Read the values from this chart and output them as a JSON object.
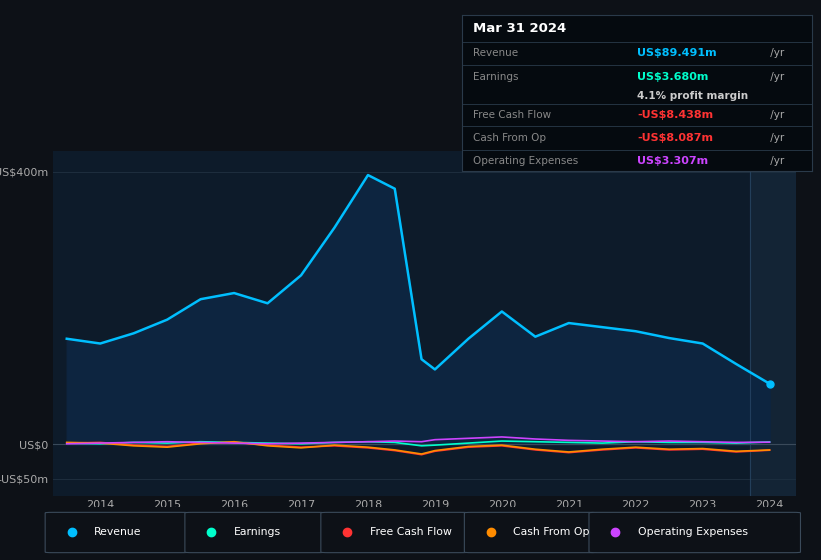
{
  "background_color": "#0d1117",
  "plot_bg_color": "#0d1b2a",
  "years": [
    2013.5,
    2014.0,
    2014.5,
    2015.0,
    2015.5,
    2016.0,
    2016.5,
    2017.0,
    2017.5,
    2018.0,
    2018.4,
    2018.8,
    2019.0,
    2019.5,
    2020.0,
    2020.5,
    2021.0,
    2021.5,
    2022.0,
    2022.5,
    2023.0,
    2023.5,
    2024.0
  ],
  "revenue": [
    155,
    148,
    163,
    183,
    213,
    222,
    207,
    248,
    318,
    395,
    375,
    125,
    110,
    155,
    195,
    158,
    178,
    172,
    166,
    156,
    148,
    118,
    89
  ],
  "earnings": [
    2,
    1,
    3,
    2,
    4,
    3,
    2,
    1,
    3,
    4,
    3,
    -2,
    -1,
    2,
    5,
    4,
    3,
    2,
    4,
    3,
    3,
    2,
    3.68
  ],
  "free_cash_flow": [
    2,
    3,
    -1,
    -3,
    2,
    3,
    -1,
    -4,
    -2,
    -5,
    -9,
    -15,
    -10,
    -4,
    -2,
    -8,
    -12,
    -8,
    -5,
    -8,
    -7,
    -11,
    -8.438
  ],
  "cash_from_op": [
    3,
    2,
    -2,
    -4,
    1,
    4,
    -2,
    -5,
    -1,
    -4,
    -8,
    -14,
    -9,
    -3,
    -1,
    -7,
    -11,
    -7,
    -4,
    -7,
    -6,
    -10,
    -8.087
  ],
  "operating_expenses": [
    1,
    2,
    3,
    4,
    3,
    2,
    1,
    2,
    3,
    4,
    5,
    4,
    7,
    9,
    11,
    8,
    6,
    5,
    4,
    5,
    4,
    3,
    3.307
  ],
  "revenue_color": "#00bfff",
  "earnings_color": "#00ffcc",
  "fcf_color": "#ff3333",
  "cashop_color": "#ff8c00",
  "opex_color": "#cc44ff",
  "fill_color": "#0d2540",
  "ylim_top": 430,
  "ylim_bottom": -75,
  "grid_color": "#1e2e3e",
  "zero_line_color": "#3a4a5a",
  "xtick_values": [
    2014,
    2015,
    2016,
    2017,
    2018,
    2019,
    2020,
    2021,
    2022,
    2023,
    2024
  ],
  "info_box": {
    "title": "Mar 31 2024",
    "rows": [
      {
        "label": "Revenue",
        "value": "US$89.491m",
        "value_color": "#00bfff",
        "suffix": " /yr",
        "extra": null
      },
      {
        "label": "Earnings",
        "value": "US$3.680m",
        "value_color": "#00ffcc",
        "suffix": " /yr",
        "extra": "4.1% profit margin"
      },
      {
        "label": "Free Cash Flow",
        "value": "-US$8.438m",
        "value_color": "#ff3333",
        "suffix": " /yr",
        "extra": null
      },
      {
        "label": "Cash From Op",
        "value": "-US$8.087m",
        "value_color": "#ff3333",
        "suffix": " /yr",
        "extra": null
      },
      {
        "label": "Operating Expenses",
        "value": "US$3.307m",
        "value_color": "#cc44ff",
        "suffix": " /yr",
        "extra": null
      }
    ]
  },
  "legend": [
    {
      "label": "Revenue",
      "color": "#00bfff"
    },
    {
      "label": "Earnings",
      "color": "#00ffcc"
    },
    {
      "label": "Free Cash Flow",
      "color": "#ff3333"
    },
    {
      "label": "Cash From Op",
      "color": "#ff8c00"
    },
    {
      "label": "Operating Expenses",
      "color": "#cc44ff"
    }
  ]
}
